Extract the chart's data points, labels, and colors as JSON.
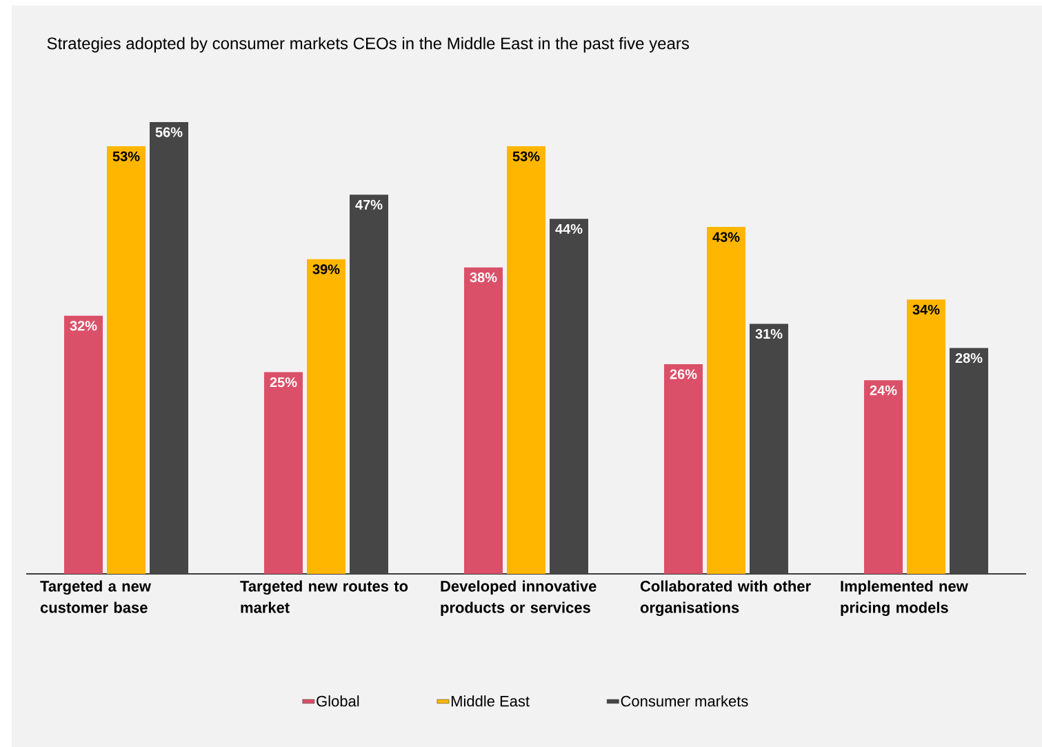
{
  "chart_data": {
    "type": "bar",
    "title": "Strategies adopted by consumer markets CEOs in the Middle East in the past five years",
    "categories": [
      "Targeted a new customer base",
      "Targeted new routes to market",
      "Developed innovative products or services",
      "Collaborated with other organisations",
      "Implemented new pricing models"
    ],
    "series": [
      {
        "name": "Global",
        "color": "#db5069",
        "values": [
          32,
          25,
          38,
          26,
          24
        ],
        "value_labels": [
          "32%",
          "25%",
          "38%",
          "26%",
          "24%"
        ]
      },
      {
        "name": "Middle East",
        "color": "#ffb600",
        "values": [
          53,
          39,
          53,
          43,
          34
        ],
        "value_labels": [
          "53%",
          "39%",
          "53%",
          "43%",
          "34%"
        ]
      },
      {
        "name": "Consumer markets",
        "color": "#464646",
        "values": [
          56,
          47,
          44,
          31,
          28
        ],
        "value_labels": [
          "56%",
          "47%",
          "44%",
          "31%",
          "28%"
        ]
      }
    ],
    "legend": "bottom"
  }
}
